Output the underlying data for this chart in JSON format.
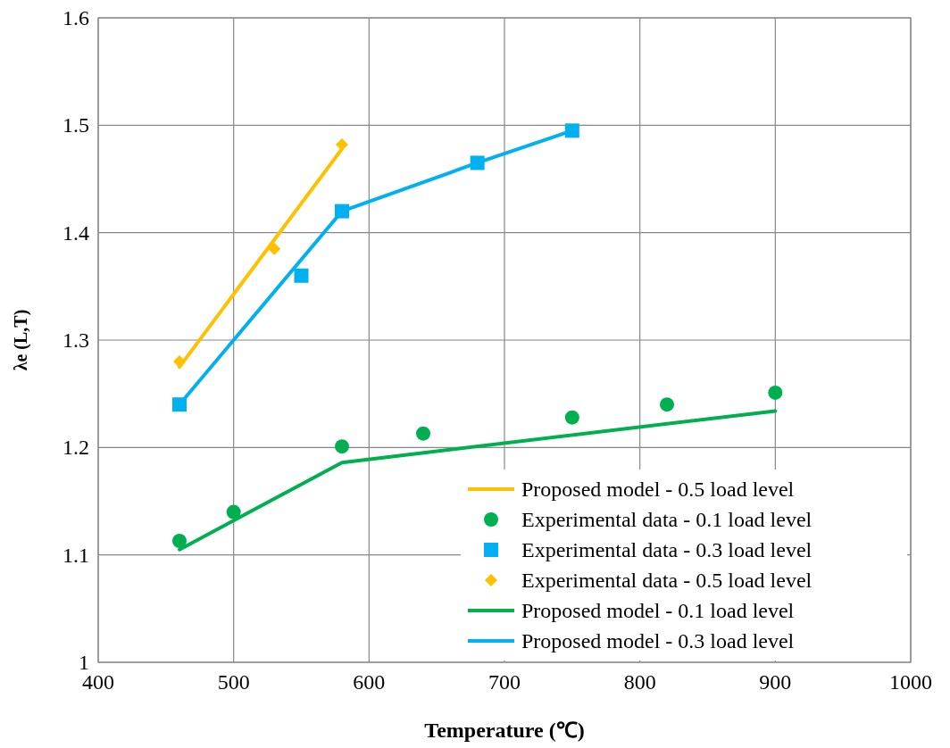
{
  "chart_data": {
    "type": "scatter",
    "xlabel": "Temperature (℃)",
    "ylabel": "λe (L,T)",
    "xlim": [
      400,
      1000
    ],
    "ylim": [
      1,
      1.6
    ],
    "xticks": [
      400,
      500,
      600,
      700,
      800,
      900,
      1000
    ],
    "yticks": [
      1,
      1.1,
      1.2,
      1.3,
      1.4,
      1.5,
      1.6
    ],
    "grid": true,
    "legend": "bottom right",
    "series": [
      {
        "name": "Proposed model - 0.5 load level",
        "type": "line",
        "color": "#ffc000",
        "marker": "none",
        "line_style": "solid",
        "x": [
          460,
          580
        ],
        "values": [
          1.275,
          1.478
        ]
      },
      {
        "name": "Experimental data - 0.1 load level",
        "color": "#00b050",
        "marker": "circle",
        "x": [
          460,
          500,
          580,
          640,
          750,
          820,
          900
        ],
        "values": [
          1.113,
          1.14,
          1.201,
          1.213,
          1.228,
          1.24,
          1.251
        ]
      },
      {
        "name": "Experimental data - 0.3 load level",
        "color": "#00b0f0",
        "marker": "square",
        "x": [
          460,
          550,
          580,
          680,
          750
        ],
        "values": [
          1.24,
          1.36,
          1.42,
          1.465,
          1.495
        ]
      },
      {
        "name": "Experimental data - 0.5 load level",
        "color": "#ffc000",
        "marker": "diamond",
        "x": [
          460,
          530,
          580
        ],
        "values": [
          1.28,
          1.385,
          1.482
        ]
      },
      {
        "name": "Proposed model - 0.1 load level",
        "type": "line",
        "color": "#00b050",
        "marker": "none",
        "line_style": "solid",
        "x": [
          460,
          580,
          900
        ],
        "values": [
          1.105,
          1.186,
          1.234
        ]
      },
      {
        "name": "Proposed model - 0.3 load level",
        "type": "line",
        "color": "#00b0f0",
        "marker": "none",
        "line_style": "solid",
        "x": [
          460,
          580,
          680,
          750
        ],
        "values": [
          1.24,
          1.42,
          1.465,
          1.495
        ]
      }
    ]
  }
}
